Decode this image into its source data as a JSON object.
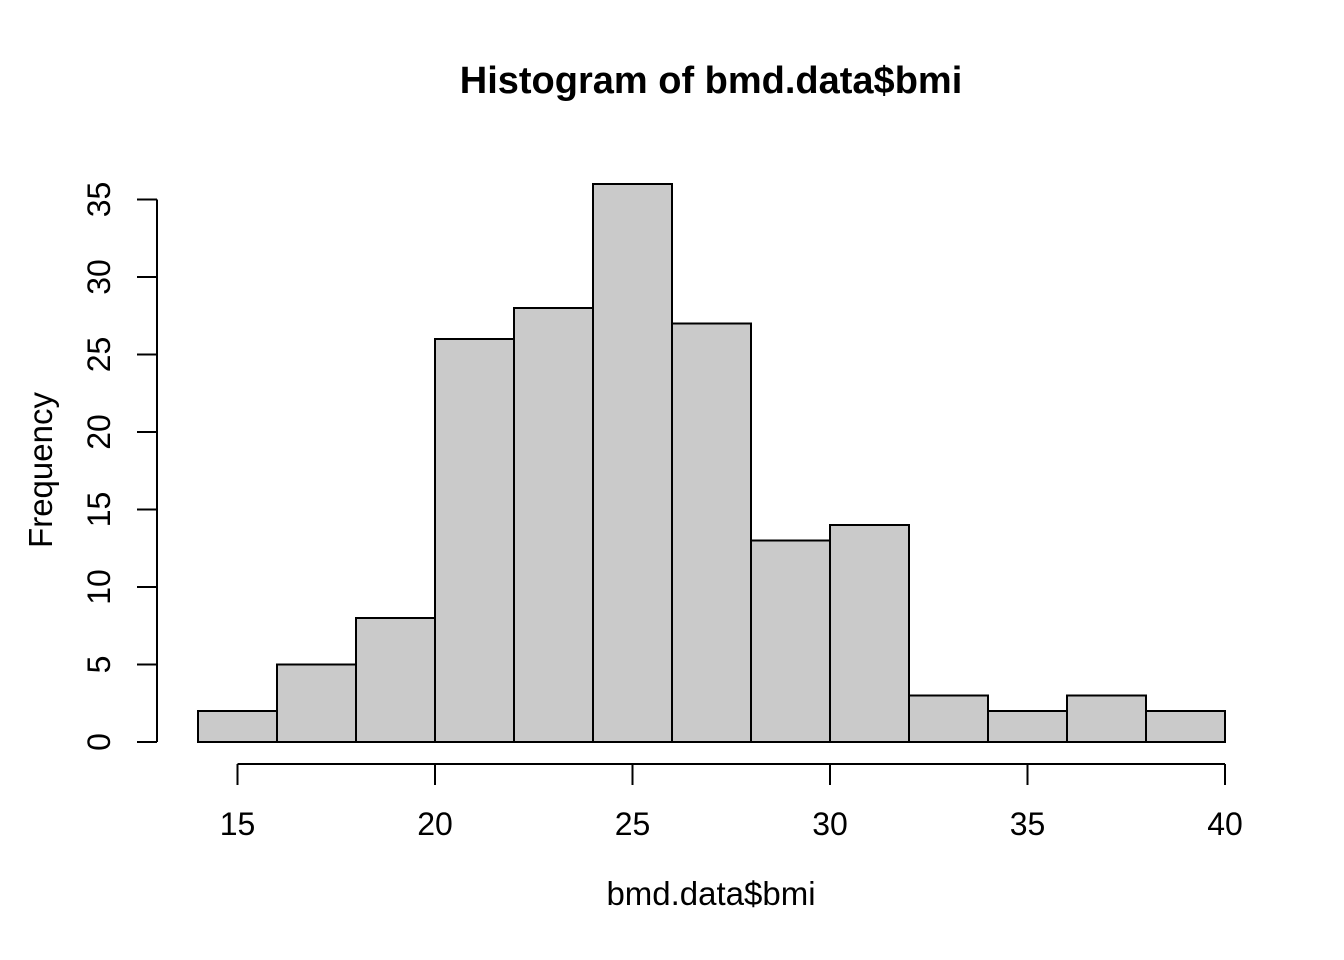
{
  "chart_data": {
    "type": "bar",
    "subtype": "histogram",
    "title": "Histogram of bmd.data$bmi",
    "xlabel": "bmd.data$bmi",
    "ylabel": "Frequency",
    "bin_start": 14,
    "bin_width": 2,
    "bin_edges": [
      14,
      16,
      18,
      20,
      22,
      24,
      26,
      28,
      30,
      32,
      34,
      36,
      38,
      40
    ],
    "counts": [
      2,
      5,
      8,
      26,
      28,
      36,
      27,
      13,
      14,
      3,
      2,
      3,
      2
    ],
    "x_ticks": [
      15,
      20,
      25,
      30,
      35,
      40
    ],
    "y_ticks": [
      0,
      5,
      10,
      15,
      20,
      25,
      30,
      35
    ],
    "xlim": [
      14,
      40
    ],
    "ylim": [
      0,
      36
    ],
    "grid": false,
    "legend": false,
    "colors": {
      "bar_fill": "#CACACA",
      "bar_border": "#000000",
      "axis": "#000000",
      "text": "#000000",
      "background": "#FFFFFF"
    }
  }
}
